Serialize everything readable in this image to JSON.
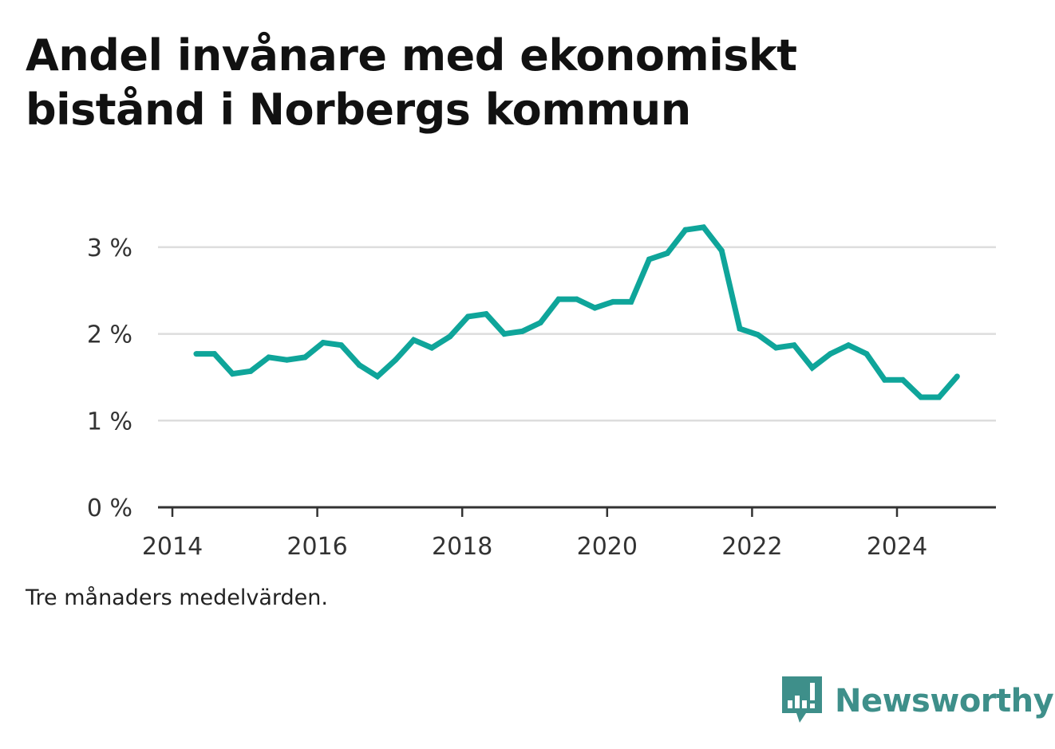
{
  "title_lines": [
    "Andel invånare med ekonomiskt",
    "bistånd i Norbergs kommun"
  ],
  "note": "Tre månaders medelvärden.",
  "brand": {
    "name": "Newsworthy",
    "icon": "newsworthy-logo-icon",
    "color": "#3e8f8a"
  },
  "colors": {
    "line": "#0fa59a",
    "grid": "#dddddd",
    "axis": "#333333"
  },
  "chart_data": {
    "type": "line",
    "title": "Andel invånare med ekonomiskt bistånd i Norbergs kommun",
    "xlabel": "",
    "ylabel": "",
    "xlim": [
      2014,
      2025.4
    ],
    "ylim": [
      0,
      3
    ],
    "x_ticks": [
      2014,
      2016,
      2018,
      2020,
      2022,
      2024
    ],
    "y_ticks": [
      0,
      1,
      2,
      3
    ],
    "y_tick_labels": [
      "0 %",
      "1 %",
      "2 %",
      "3 %"
    ],
    "grid": true,
    "legend": "none",
    "series": [
      {
        "x": [
          2014.33,
          2014.58,
          2014.83,
          2015.08,
          2015.33,
          2015.58,
          2015.83,
          2016.08,
          2016.33,
          2016.58,
          2016.83,
          2017.08,
          2017.33,
          2017.58,
          2017.83,
          2018.08,
          2018.33,
          2018.58,
          2018.83,
          2019.08,
          2019.33,
          2019.58,
          2019.83,
          2020.08,
          2020.33,
          2020.58,
          2020.83,
          2021.08,
          2021.33,
          2021.58,
          2021.83,
          2022.08,
          2022.33,
          2022.58,
          2022.83,
          2023.08,
          2023.33,
          2023.58,
          2023.83,
          2024.08,
          2024.33,
          2024.58,
          2024.83
        ],
        "y": [
          1.77,
          1.77,
          1.54,
          1.57,
          1.73,
          1.7,
          1.73,
          1.9,
          1.87,
          1.64,
          1.51,
          1.7,
          1.93,
          1.84,
          1.97,
          2.2,
          2.23,
          2.0,
          2.03,
          2.13,
          2.4,
          2.4,
          2.3,
          2.37,
          2.37,
          2.86,
          2.93,
          3.2,
          3.23,
          2.96,
          2.06,
          1.99,
          1.84,
          1.87,
          1.61,
          1.77,
          1.87,
          1.77,
          1.47,
          1.47,
          1.27,
          1.27,
          1.51
        ]
      }
    ]
  }
}
